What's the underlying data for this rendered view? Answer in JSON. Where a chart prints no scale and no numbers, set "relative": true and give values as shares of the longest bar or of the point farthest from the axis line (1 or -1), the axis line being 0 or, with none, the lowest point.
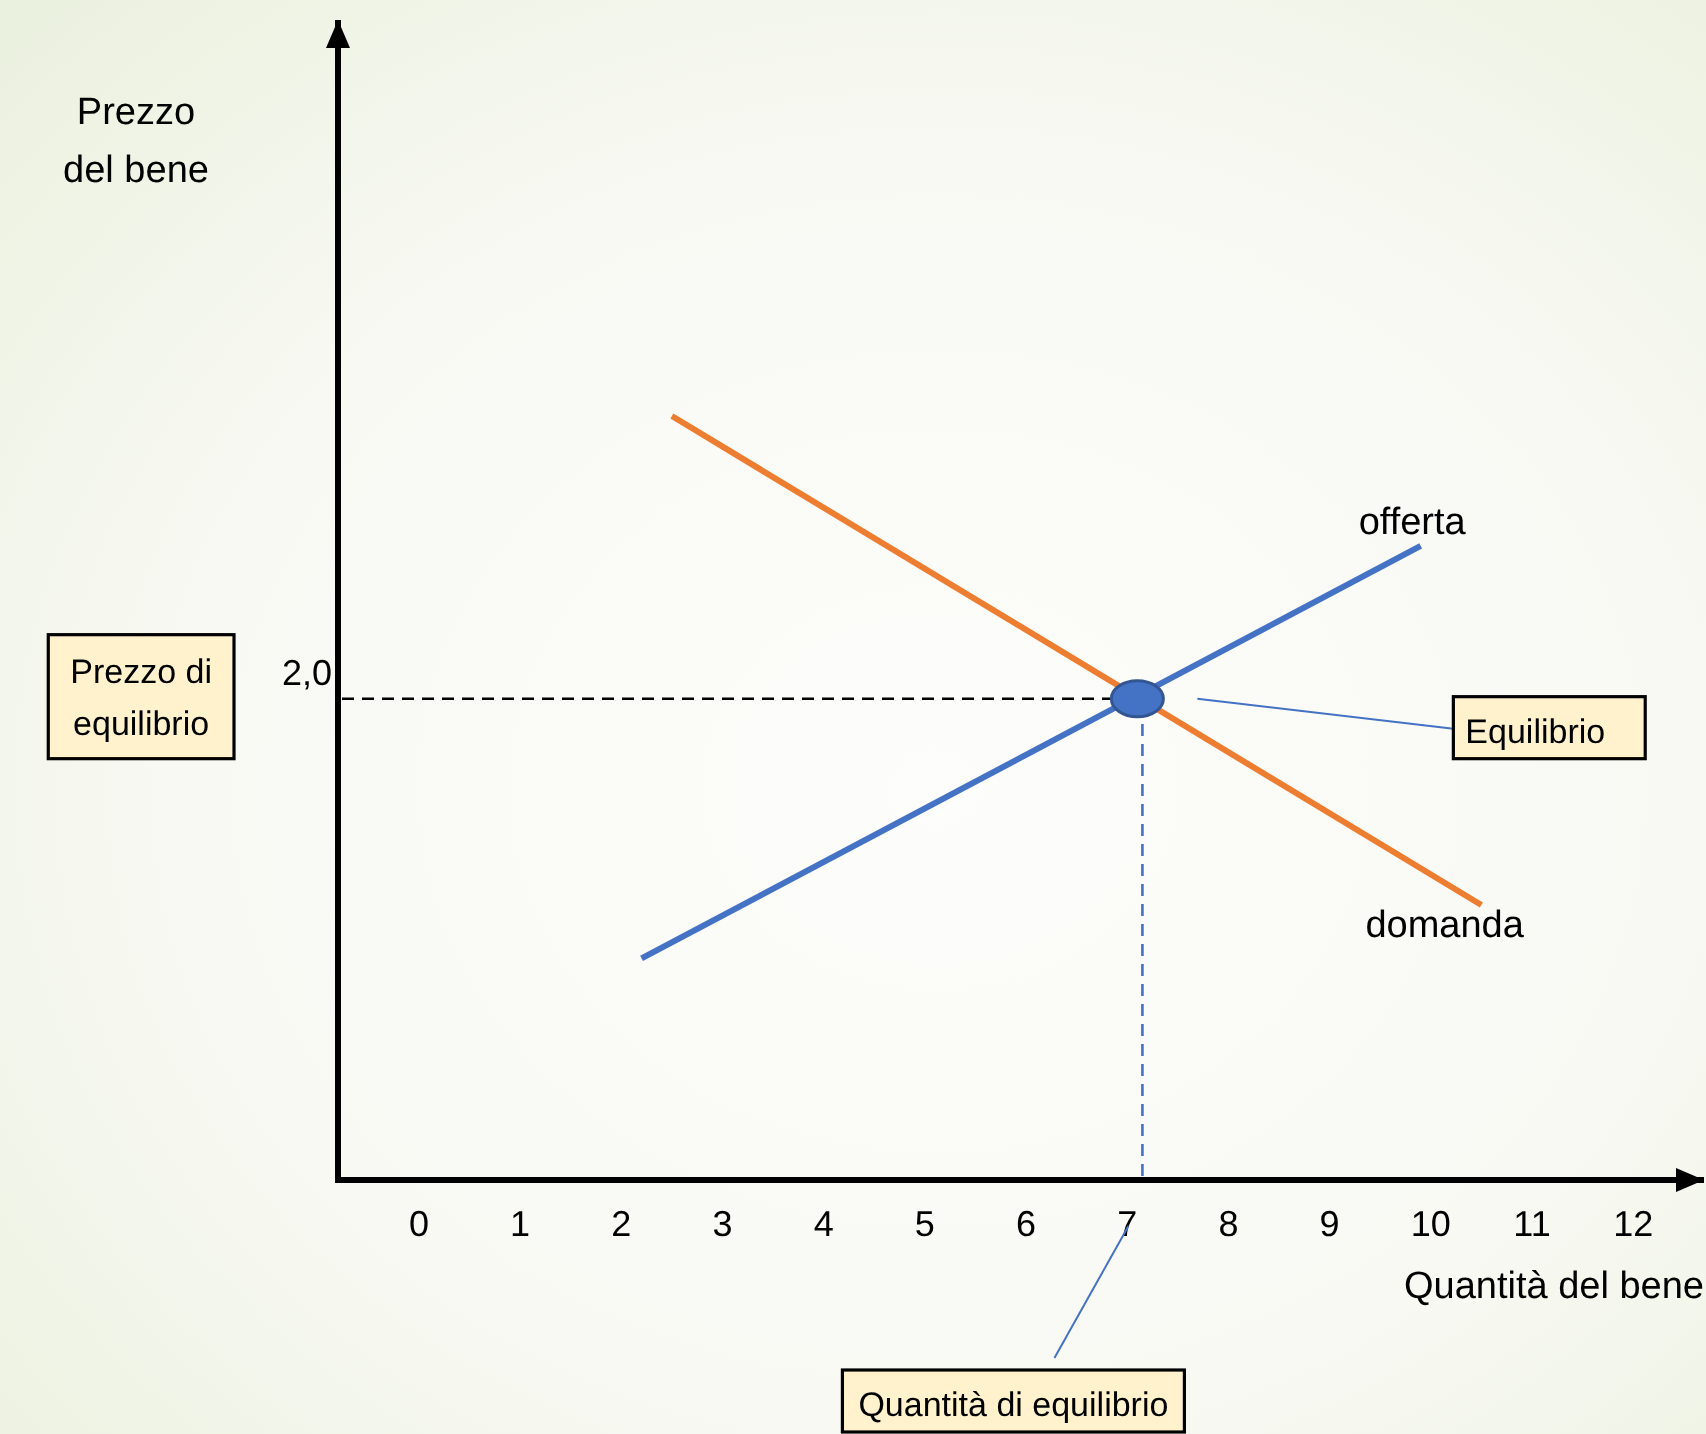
{
  "chart_data": {
    "type": "line",
    "xlabel": "Quantità del bene",
    "relative": true,
    "xlim": [
      -0.8,
      12.7
    ],
    "xticks": [
      0,
      1,
      2,
      3,
      4,
      5,
      6,
      7,
      8,
      9,
      10,
      11,
      12
    ],
    "series": [
      {
        "name": "domanda",
        "color": "#ed7d31",
        "x": [
          2.5,
          10.5
        ],
        "values": [
          1,
          0.36
        ]
      },
      {
        "name": "offerta",
        "color": "#4472c4",
        "x": [
          2.2,
          9.9
        ],
        "values": [
          0.29,
          0.83
        ]
      },
      {
        "type": "scatter",
        "color": "#4472c4",
        "marker": "circle",
        "x": [
          7.1
        ],
        "values": [
          0.63
        ]
      }
    ],
    "ref_lines": [
      {
        "axis": "y",
        "value": 0.63,
        "color": "#000000",
        "line_style": "dashed"
      },
      {
        "axis": "x",
        "value": 7.15,
        "color": "#4472c4",
        "line_style": "dashed"
      }
    ],
    "annotations": [
      "Prezzo del bene",
      "Prezzo di equilibrio",
      "2,0",
      "Equilibrio",
      "Quantità di equilibrio"
    ]
  }
}
